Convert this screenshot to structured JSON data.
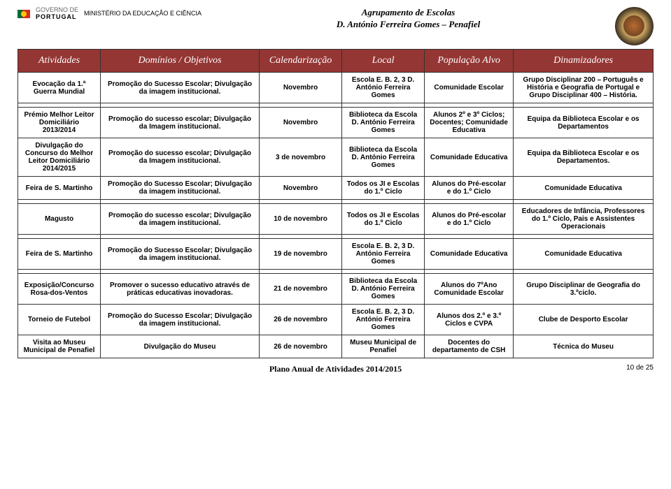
{
  "header": {
    "gov_line1": "GOVERNO DE",
    "gov_line2": "PORTUGAL",
    "ministry": "MINISTÉRIO DA EDUCAÇÃO E CIÊNCIA",
    "center_line1": "Agrupamento de Escolas",
    "center_line2": "D. António Ferreira Gomes – Penafiel"
  },
  "table": {
    "headers": [
      "Atividades",
      "Domínios / Objetivos",
      "Calendarização",
      "Local",
      "População Alvo",
      "Dinamizadores"
    ],
    "groups": [
      [
        {
          "activ": "Evocação da 1.ª Guerra Mundial",
          "dom": "Promoção do Sucesso Escolar; Divulgação da imagem institucional.",
          "cal": "Novembro",
          "local": "Escola E. B. 2, 3 D. António Ferreira Gomes",
          "pop": "Comunidade Escolar",
          "din": "Grupo Disciplinar 200 – Português e História e Geografia de Portugal e Grupo Disciplinar 400 – História."
        }
      ],
      [
        {
          "activ": "Prémio Melhor Leitor Domiciliário 2013/2014",
          "dom": "Promoção do sucesso escolar; Divulgação da Imagem institucional.",
          "cal": "Novembro",
          "local": "Biblioteca da Escola D. António Ferreira Gomes",
          "pop": "Alunos 2º e 3º Ciclos; Docentes; Comunidade Educativa",
          "din": "Equipa da Biblioteca Escolar e os Departamentos"
        },
        {
          "activ": "Divulgação do Concurso do Melhor Leitor Domiciliário 2014/2015",
          "dom": "Promoção do sucesso escolar; Divulgação da Imagem institucional.",
          "cal": "3 de novembro",
          "local": "Biblioteca da Escola D. António Ferreira Gomes",
          "pop": "Comunidade Educativa",
          "din": "Equipa da Biblioteca Escolar e os Departamentos."
        },
        {
          "activ": "Feira de S. Martinho",
          "dom": "Promoção do Sucesso Escolar; Divulgação da imagem institucional.",
          "cal": "Novembro",
          "local": "Todos os JI e Escolas do 1.º Ciclo",
          "pop": "Alunos do Pré-escolar e do 1.º Ciclo",
          "din": "Comunidade Educativa"
        }
      ],
      [
        {
          "activ": "Magusto",
          "dom": "Promoção do sucesso escolar; Divulgação da imagem institucional.",
          "cal": "10 de novembro",
          "local": "Todos os JI e Escolas do 1.º Ciclo",
          "pop": "Alunos do Pré-escolar e do 1.º Ciclo",
          "din": "Educadores de Infância, Professores do 1.º Ciclo, Pais e Assistentes Operacionais"
        }
      ],
      [
        {
          "activ": "Feira de S. Martinho",
          "dom": "Promoção do Sucesso Escolar; Divulgação da imagem institucional.",
          "cal": "19 de novembro",
          "local": "Escola E. B. 2, 3 D. António Ferreira Gomes",
          "pop": "Comunidade Educativa",
          "din": "Comunidade Educativa"
        }
      ],
      [
        {
          "activ": "Exposição/Concurso Rosa-dos-Ventos",
          "dom": "Promover o sucesso educativo através de práticas educativas inovadoras.",
          "cal": "21 de novembro",
          "local": "Biblioteca da Escola D. António Ferreira Gomes",
          "pop": "Alunos do 7ºAno Comunidade Escolar",
          "din": "Grupo Disciplinar de Geografia do 3.ºciclo."
        },
        {
          "activ": "Torneio de Futebol",
          "dom": "Promoção do Sucesso Escolar; Divulgação da imagem institucional.",
          "cal": "26 de novembro",
          "local": "Escola E. B. 2, 3 D. António Ferreira Gomes",
          "pop": "Alunos dos 2.º e 3.º Ciclos e CVPA",
          "din": "Clube de Desporto Escolar"
        },
        {
          "activ": "Visita ao Museu Municipal de Penafiel",
          "dom": "Divulgação do Museu",
          "cal": "26 de novembro",
          "local": "Museu Municipal de Penafiel",
          "pop": "Docentes do departamento de CSH",
          "din": "Técnica do Museu"
        }
      ]
    ]
  },
  "footer": {
    "title": "Plano Anual de Atividades 2014/2015",
    "page": "10 de 25"
  },
  "colors": {
    "header_bg": "#943634",
    "header_fg": "#ffffff",
    "border": "#333333"
  }
}
